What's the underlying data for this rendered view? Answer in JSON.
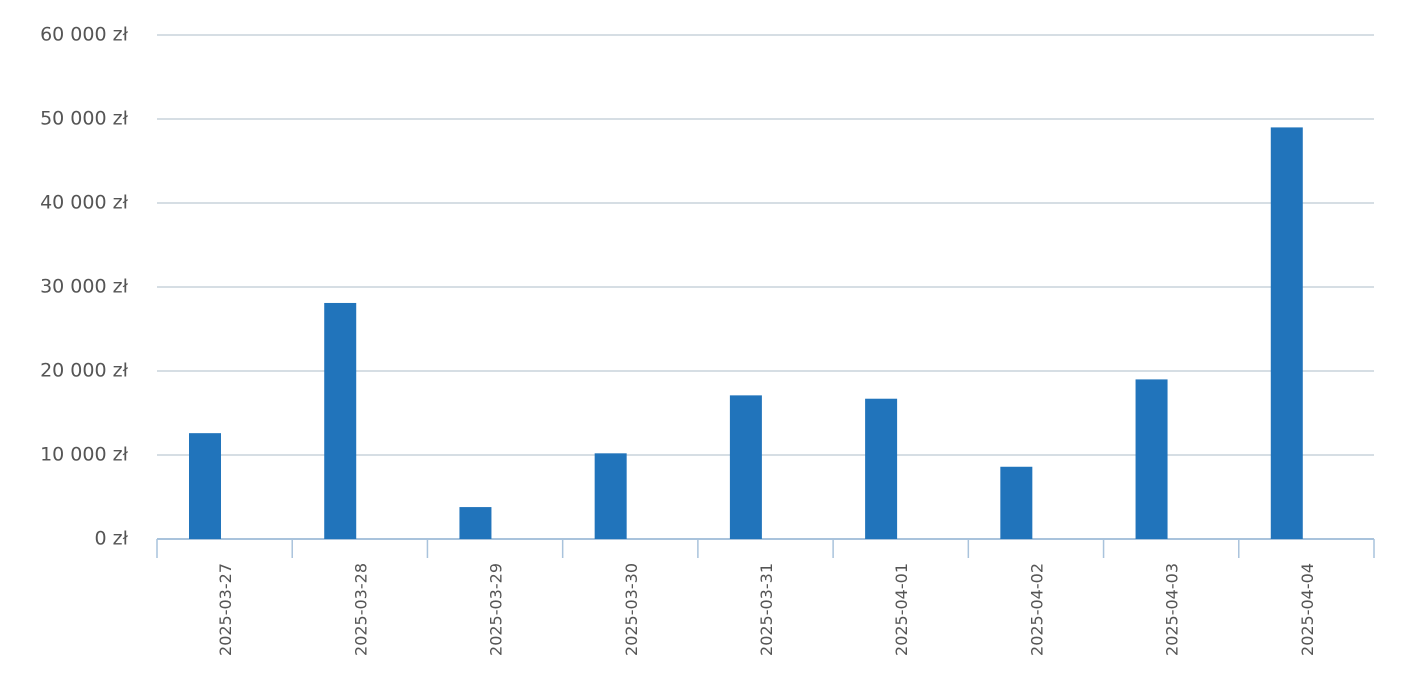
{
  "chart_data": {
    "type": "bar",
    "categories": [
      "2025-03-27",
      "2025-03-28",
      "2025-03-29",
      "2025-03-30",
      "2025-03-31",
      "2025-04-01",
      "2025-04-02",
      "2025-04-03",
      "2025-04-04"
    ],
    "values": [
      12600,
      28100,
      3800,
      10200,
      17100,
      16700,
      8600,
      19000,
      49000
    ],
    "color": "#2174bb",
    "ylim": [
      0,
      60000
    ],
    "yticks": [
      {
        "value": 0,
        "label": "0 zł"
      },
      {
        "value": 10000,
        "label": "10 000 zł"
      },
      {
        "value": 20000,
        "label": "20 000 zł"
      },
      {
        "value": 30000,
        "label": "30 000 zł"
      },
      {
        "value": 40000,
        "label": "40 000 zł"
      },
      {
        "value": 50000,
        "label": "50 000 zł"
      },
      {
        "value": 60000,
        "label": "60 000 zł"
      }
    ],
    "grid": true
  }
}
